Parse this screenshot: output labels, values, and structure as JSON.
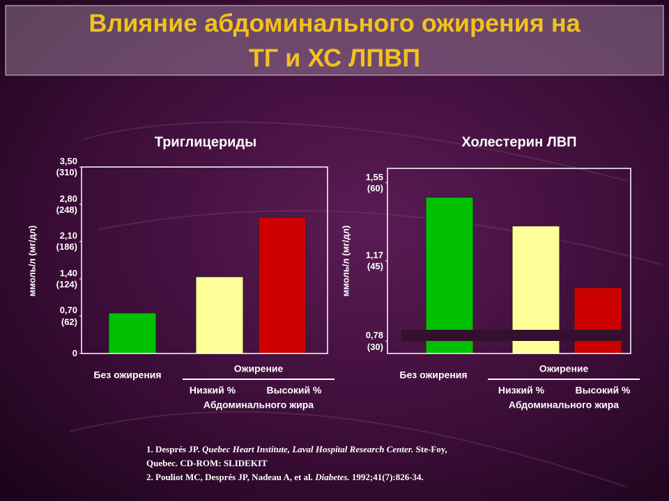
{
  "title": [
    "Влияние абдоминального ожирения на",
    "ТГ и ХС ЛПВП"
  ],
  "chart_data": [
    {
      "type": "bar",
      "title": "Триглицериды",
      "y_label": "ммоль/л (мг/дл)",
      "categories": [
        "Без ожирения",
        "Низкий %",
        "Высокий %"
      ],
      "values": [
        0.76,
        1.44,
        2.56
      ],
      "colors": [
        "#00c000",
        "#ffff99",
        "#cc0000"
      ],
      "group_label": "Ожирение",
      "group_sublabel": "Абдоминального жира",
      "ylim": [
        0,
        3.5
      ],
      "yticks": [
        0,
        {
          "value": 0.7,
          "label": "0,70 (62)"
        },
        {
          "value": 1.4,
          "label": "1,40 (124)"
        },
        {
          "value": 2.1,
          "label": "2,10 (186)"
        },
        {
          "value": 2.8,
          "label": "2,80 (248)"
        },
        {
          "value": 3.5,
          "label": "3,50 (310)"
        }
      ]
    },
    {
      "type": "bar",
      "title": "Холестерин ЛВП",
      "y_label": "ммоль/л (мг/дл)",
      "categories": [
        "Без ожирения",
        "Низкий %",
        "Высокий %"
      ],
      "values": [
        1.48,
        1.34,
        1.04
      ],
      "colors": [
        "#00c000",
        "#ffff99",
        "#cc0000"
      ],
      "group_label": "Ожирение",
      "group_sublabel": "Абдоминального жира",
      "ylim": [
        0.72,
        1.62
      ],
      "yticks": [
        {
          "value": 0.78,
          "label": "0,78 (30)"
        },
        {
          "value": 1.17,
          "label": "1,17 (45)"
        },
        {
          "value": 1.55,
          "label": "1,55 (60)"
        }
      ]
    }
  ],
  "references": [
    [
      {
        "text": "1. Després JP. "
      },
      {
        "text": "Quebec Heart Institute, Laval Hospital Research Center.",
        "italic": true
      },
      {
        "text": " Ste-Foy,"
      }
    ],
    [
      {
        "text": "Quebec. CD-ROM: SLIDEKIT"
      }
    ],
    [
      {
        "text": "2. Pouliot MC, Després JP, Nadeau A, et al. "
      },
      {
        "text": "Diabetes.",
        "italic": true
      },
      {
        "text": " 1992;41(7):826-34."
      }
    ]
  ]
}
